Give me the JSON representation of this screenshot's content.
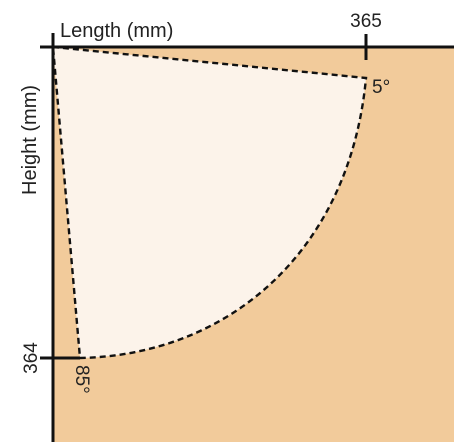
{
  "axes": {
    "x_label": "Length (mm)",
    "y_label": "Height (mm)",
    "x_tick": "365",
    "y_tick": "364"
  },
  "angles": {
    "start": "5°",
    "end": "85°"
  },
  "colors": {
    "background_region": "#f2cb9b",
    "sector_fill": "#fcf3ea",
    "outline": "#111111"
  }
}
